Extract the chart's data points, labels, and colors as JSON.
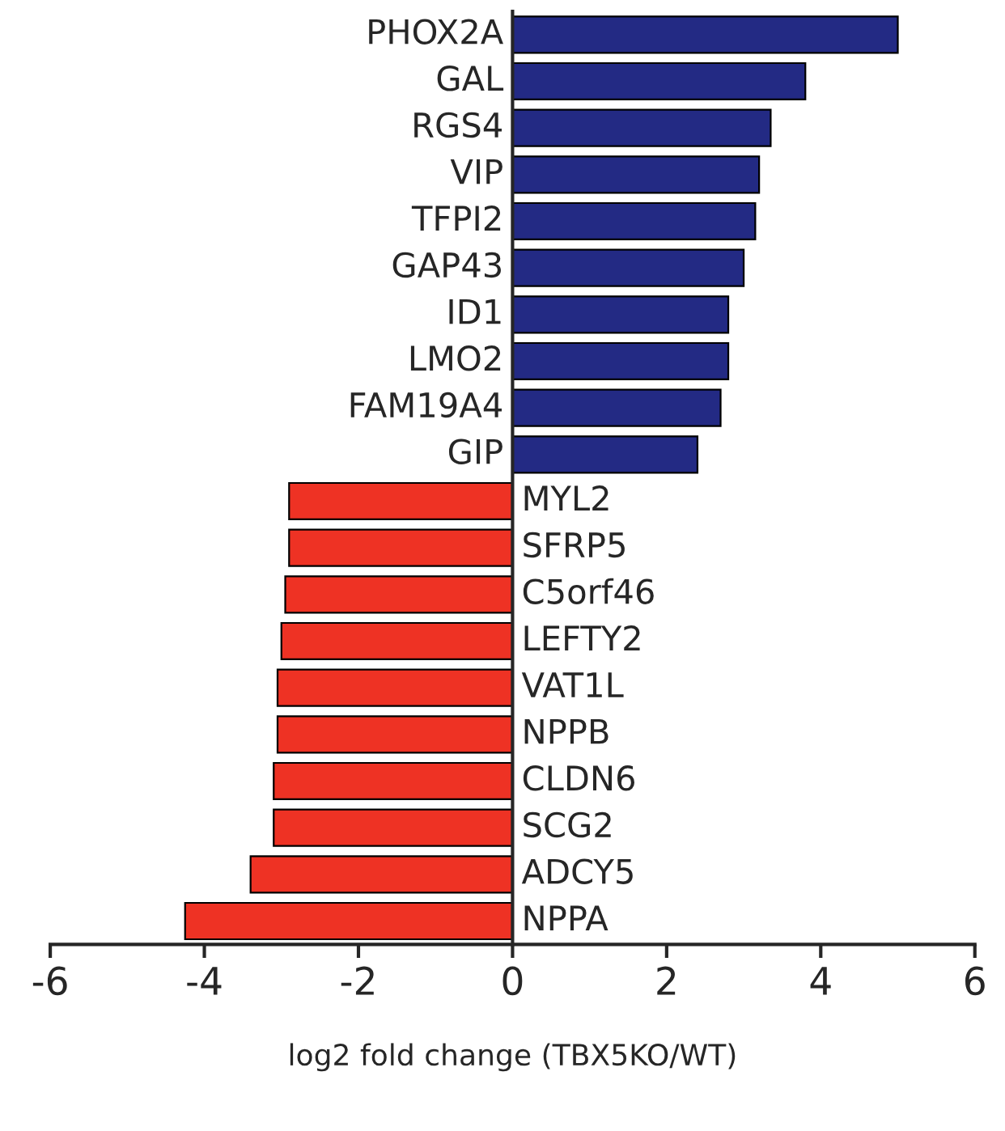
{
  "chart_data": {
    "type": "bar",
    "orientation": "horizontal",
    "xlabel": "log2 fold change (TBX5KO/WT)",
    "categories": [
      "PHOX2A",
      "GAL",
      "RGS4",
      "VIP",
      "TFPI2",
      "GAP43",
      "ID1",
      "LMO2",
      "FAM19A4",
      "GIP",
      "MYL2",
      "SFRP5",
      "C5orf46",
      "LEFTY2",
      "VAT1L",
      "NPPB",
      "CLDN6",
      "SCG2",
      "ADCY5",
      "NPPA"
    ],
    "values": [
      5.0,
      3.8,
      3.35,
      3.2,
      3.15,
      3.0,
      2.8,
      2.8,
      2.7,
      2.4,
      -2.9,
      -2.9,
      -2.95,
      -3.0,
      -3.05,
      -3.05,
      -3.1,
      -3.1,
      -3.4,
      -4.25
    ],
    "colors": [
      "#232a84",
      "#232a84",
      "#232a84",
      "#232a84",
      "#232a84",
      "#232a84",
      "#232a84",
      "#232a84",
      "#232a84",
      "#232a84",
      "#ee3224",
      "#ee3224",
      "#ee3224",
      "#ee3224",
      "#ee3224",
      "#ee3224",
      "#ee3224",
      "#ee3224",
      "#ee3224",
      "#ee3224"
    ],
    "xlim": [
      -6,
      6
    ],
    "xticks": [
      -6,
      -4,
      -2,
      0,
      2,
      4,
      6
    ],
    "grid": false,
    "legend": false
  }
}
